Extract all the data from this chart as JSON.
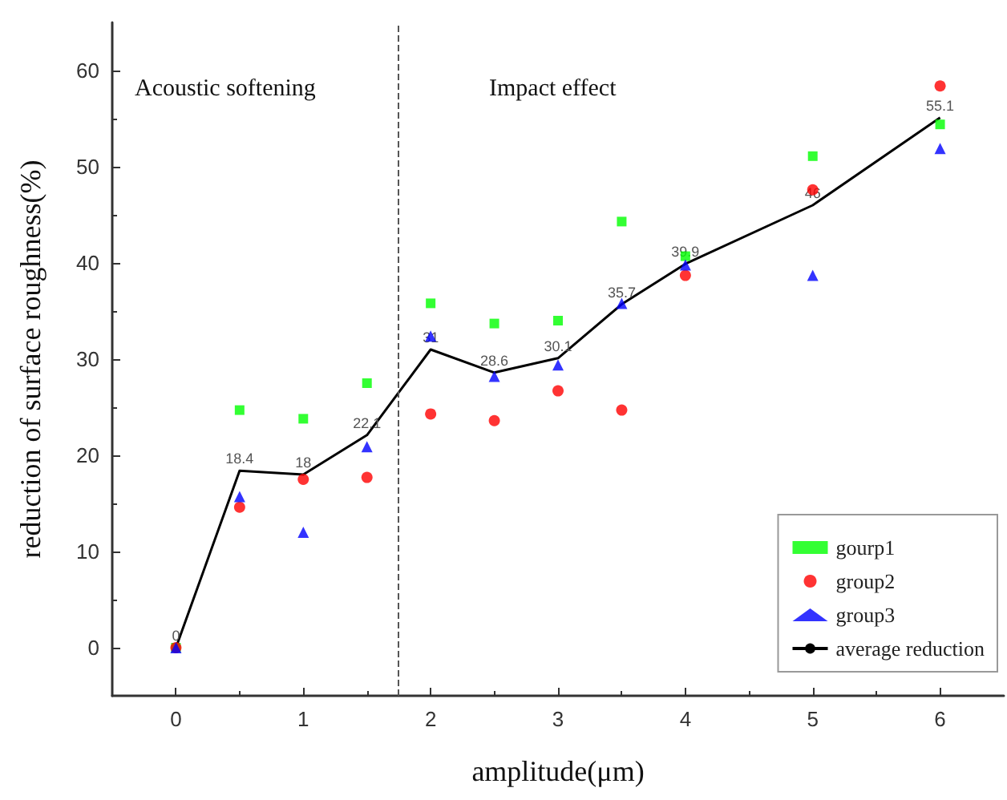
{
  "chart_data": {
    "type": "scatter",
    "xlabel": "amplitude(μm)",
    "ylabel": "reduction of surface roughness(%)",
    "xlim": [
      -0.5,
      6.5
    ],
    "xticks": [
      0,
      1,
      2,
      3,
      4,
      5,
      6
    ],
    "ylim": [
      -5,
      65
    ],
    "yticks": [
      0,
      10,
      20,
      30,
      40,
      50,
      60
    ],
    "x": [
      0,
      0.5,
      1,
      1.5,
      2,
      2.5,
      3,
      3.5,
      4,
      5,
      6
    ],
    "series": [
      {
        "name": "gourp1",
        "color": "#00ff00",
        "marker": "square",
        "values": [
          0,
          24.7,
          23.8,
          27.5,
          35.8,
          33.7,
          34,
          44.3,
          40.7,
          51.1,
          54.4
        ]
      },
      {
        "name": "group2",
        "color": "#ff0000",
        "marker": "circle",
        "values": [
          0,
          14.6,
          17.5,
          17.7,
          24.3,
          23.6,
          26.7,
          24.7,
          38.7,
          47.6,
          58.4
        ]
      },
      {
        "name": "group3",
        "color": "#0000ff",
        "marker": "triangle",
        "values": [
          0,
          15.7,
          12,
          20.9,
          32.4,
          28.2,
          29.4,
          35.8,
          39.8,
          38.7,
          51.9
        ]
      },
      {
        "name": "average reduction",
        "type": "line",
        "color": "#000000",
        "marker": "none",
        "values": [
          0,
          18.4,
          18,
          22.1,
          31,
          28.6,
          30.1,
          35.7,
          39.9,
          46,
          55.1
        ],
        "value_labels": [
          "0",
          "18.4",
          "18",
          "22.1",
          "31",
          "28.6",
          "30.1",
          "35.7",
          "39.9",
          "46",
          "55.1"
        ]
      }
    ],
    "ref_lines": [
      {
        "axis": "x",
        "value": 1.75,
        "color": "#555555",
        "line_style": "dashed"
      }
    ],
    "annotations": [
      "Acoustic softening",
      "Impact effect"
    ],
    "legend": "bottom right",
    "grid": false
  }
}
